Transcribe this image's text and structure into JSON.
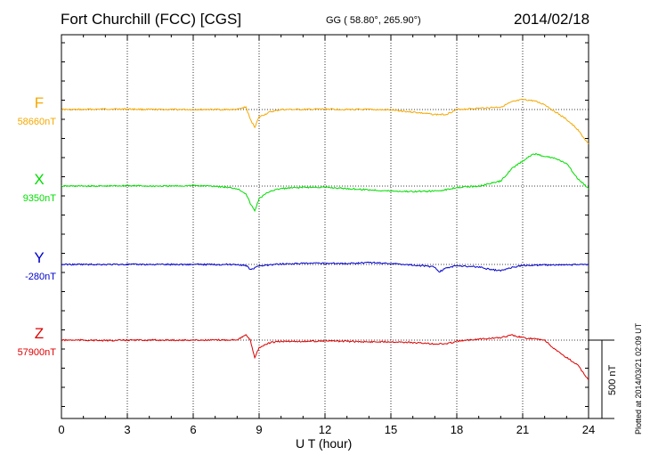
{
  "header": {
    "station": "Fort Churchill (FCC)  [CGS]",
    "coords": "GG ( 58.80°, 265.90°)",
    "date": "2014/02/18"
  },
  "footer": "Plotted at 2014/03/21 02:09 UT",
  "scale_label": "500 nT",
  "chart_data": {
    "type": "line",
    "title": "Fort Churchill (FCC)  [CGS]",
    "xlabel": "U T (hour)",
    "ylabel": "",
    "xlim": [
      0,
      24
    ],
    "xticks": [
      0,
      3,
      6,
      9,
      12,
      15,
      18,
      21,
      24
    ],
    "grid": true,
    "scale_bar_nT": 500,
    "series": [
      {
        "name": "F",
        "baseline_label": "58660nT",
        "color": "#f5a800",
        "x": [
          0,
          1,
          2,
          3,
          4,
          5,
          6,
          7,
          8,
          8.4,
          8.6,
          8.8,
          9,
          9.5,
          10,
          11,
          12,
          13,
          14,
          15,
          16,
          17,
          17.5,
          18,
          19,
          20,
          20.5,
          21,
          21.5,
          22,
          22.5,
          23,
          23.5,
          24
        ],
        "y": [
          58660,
          58660,
          58662,
          58662,
          58660,
          58660,
          58660,
          58660,
          58660,
          58670,
          58620,
          58590,
          58630,
          58650,
          58660,
          58660,
          58662,
          58660,
          58660,
          58658,
          58650,
          58640,
          58640,
          58660,
          58665,
          58670,
          58690,
          58700,
          58695,
          58680,
          58650,
          58620,
          58580,
          58520
        ]
      },
      {
        "name": "X",
        "baseline_label": "9350nT",
        "color": "#00dd00",
        "x": [
          0,
          1,
          2,
          3,
          4,
          5,
          6,
          7,
          8,
          8.4,
          8.6,
          8.8,
          9,
          9.5,
          10,
          11,
          12,
          13,
          14,
          15,
          16,
          17,
          17.5,
          18,
          19,
          20,
          20.5,
          21,
          21.5,
          22,
          22.5,
          23,
          23.5,
          24
        ],
        "y": [
          9350,
          9350,
          9350,
          9352,
          9350,
          9350,
          9352,
          9350,
          9340,
          9320,
          9280,
          9250,
          9300,
          9330,
          9340,
          9345,
          9345,
          9340,
          9335,
          9330,
          9328,
          9330,
          9335,
          9345,
          9350,
          9370,
          9420,
          9450,
          9480,
          9470,
          9460,
          9440,
          9380,
          9340
        ]
      },
      {
        "name": "Y",
        "baseline_label": "-280nT",
        "color": "#0000cc",
        "x": [
          0,
          1,
          2,
          3,
          4,
          5,
          6,
          7,
          8,
          8.4,
          8.6,
          8.8,
          9,
          9.5,
          10,
          11,
          12,
          13,
          14,
          15,
          16,
          17,
          17.2,
          17.5,
          18,
          19,
          19.5,
          20,
          20.5,
          21,
          22,
          23,
          24
        ],
        "y": [
          -280,
          -280,
          -280,
          -280,
          -280,
          -280,
          -280,
          -280,
          -280,
          -285,
          -300,
          -295,
          -285,
          -282,
          -278,
          -276,
          -275,
          -276,
          -272,
          -276,
          -282,
          -290,
          -310,
          -295,
          -285,
          -290,
          -300,
          -305,
          -292,
          -284,
          -282,
          -282,
          -280
        ]
      },
      {
        "name": "Z",
        "baseline_label": "57900nT",
        "color": "#dd0000",
        "x": [
          0,
          1,
          2,
          3,
          4,
          5,
          6,
          7,
          8,
          8.4,
          8.6,
          8.8,
          9,
          9.5,
          10,
          11,
          12,
          13,
          14,
          15,
          16,
          17,
          17.5,
          18,
          19,
          20,
          20.5,
          21,
          21.5,
          22,
          22.5,
          23,
          23.5,
          24
        ],
        "y": [
          57900,
          57900,
          57898,
          57900,
          57900,
          57900,
          57900,
          57900,
          57902,
          57920,
          57900,
          57830,
          57870,
          57890,
          57895,
          57895,
          57897,
          57895,
          57893,
          57894,
          57890,
          57885,
          57885,
          57895,
          57905,
          57910,
          57920,
          57910,
          57905,
          57900,
          57860,
          57830,
          57800,
          57740
        ]
      }
    ]
  }
}
